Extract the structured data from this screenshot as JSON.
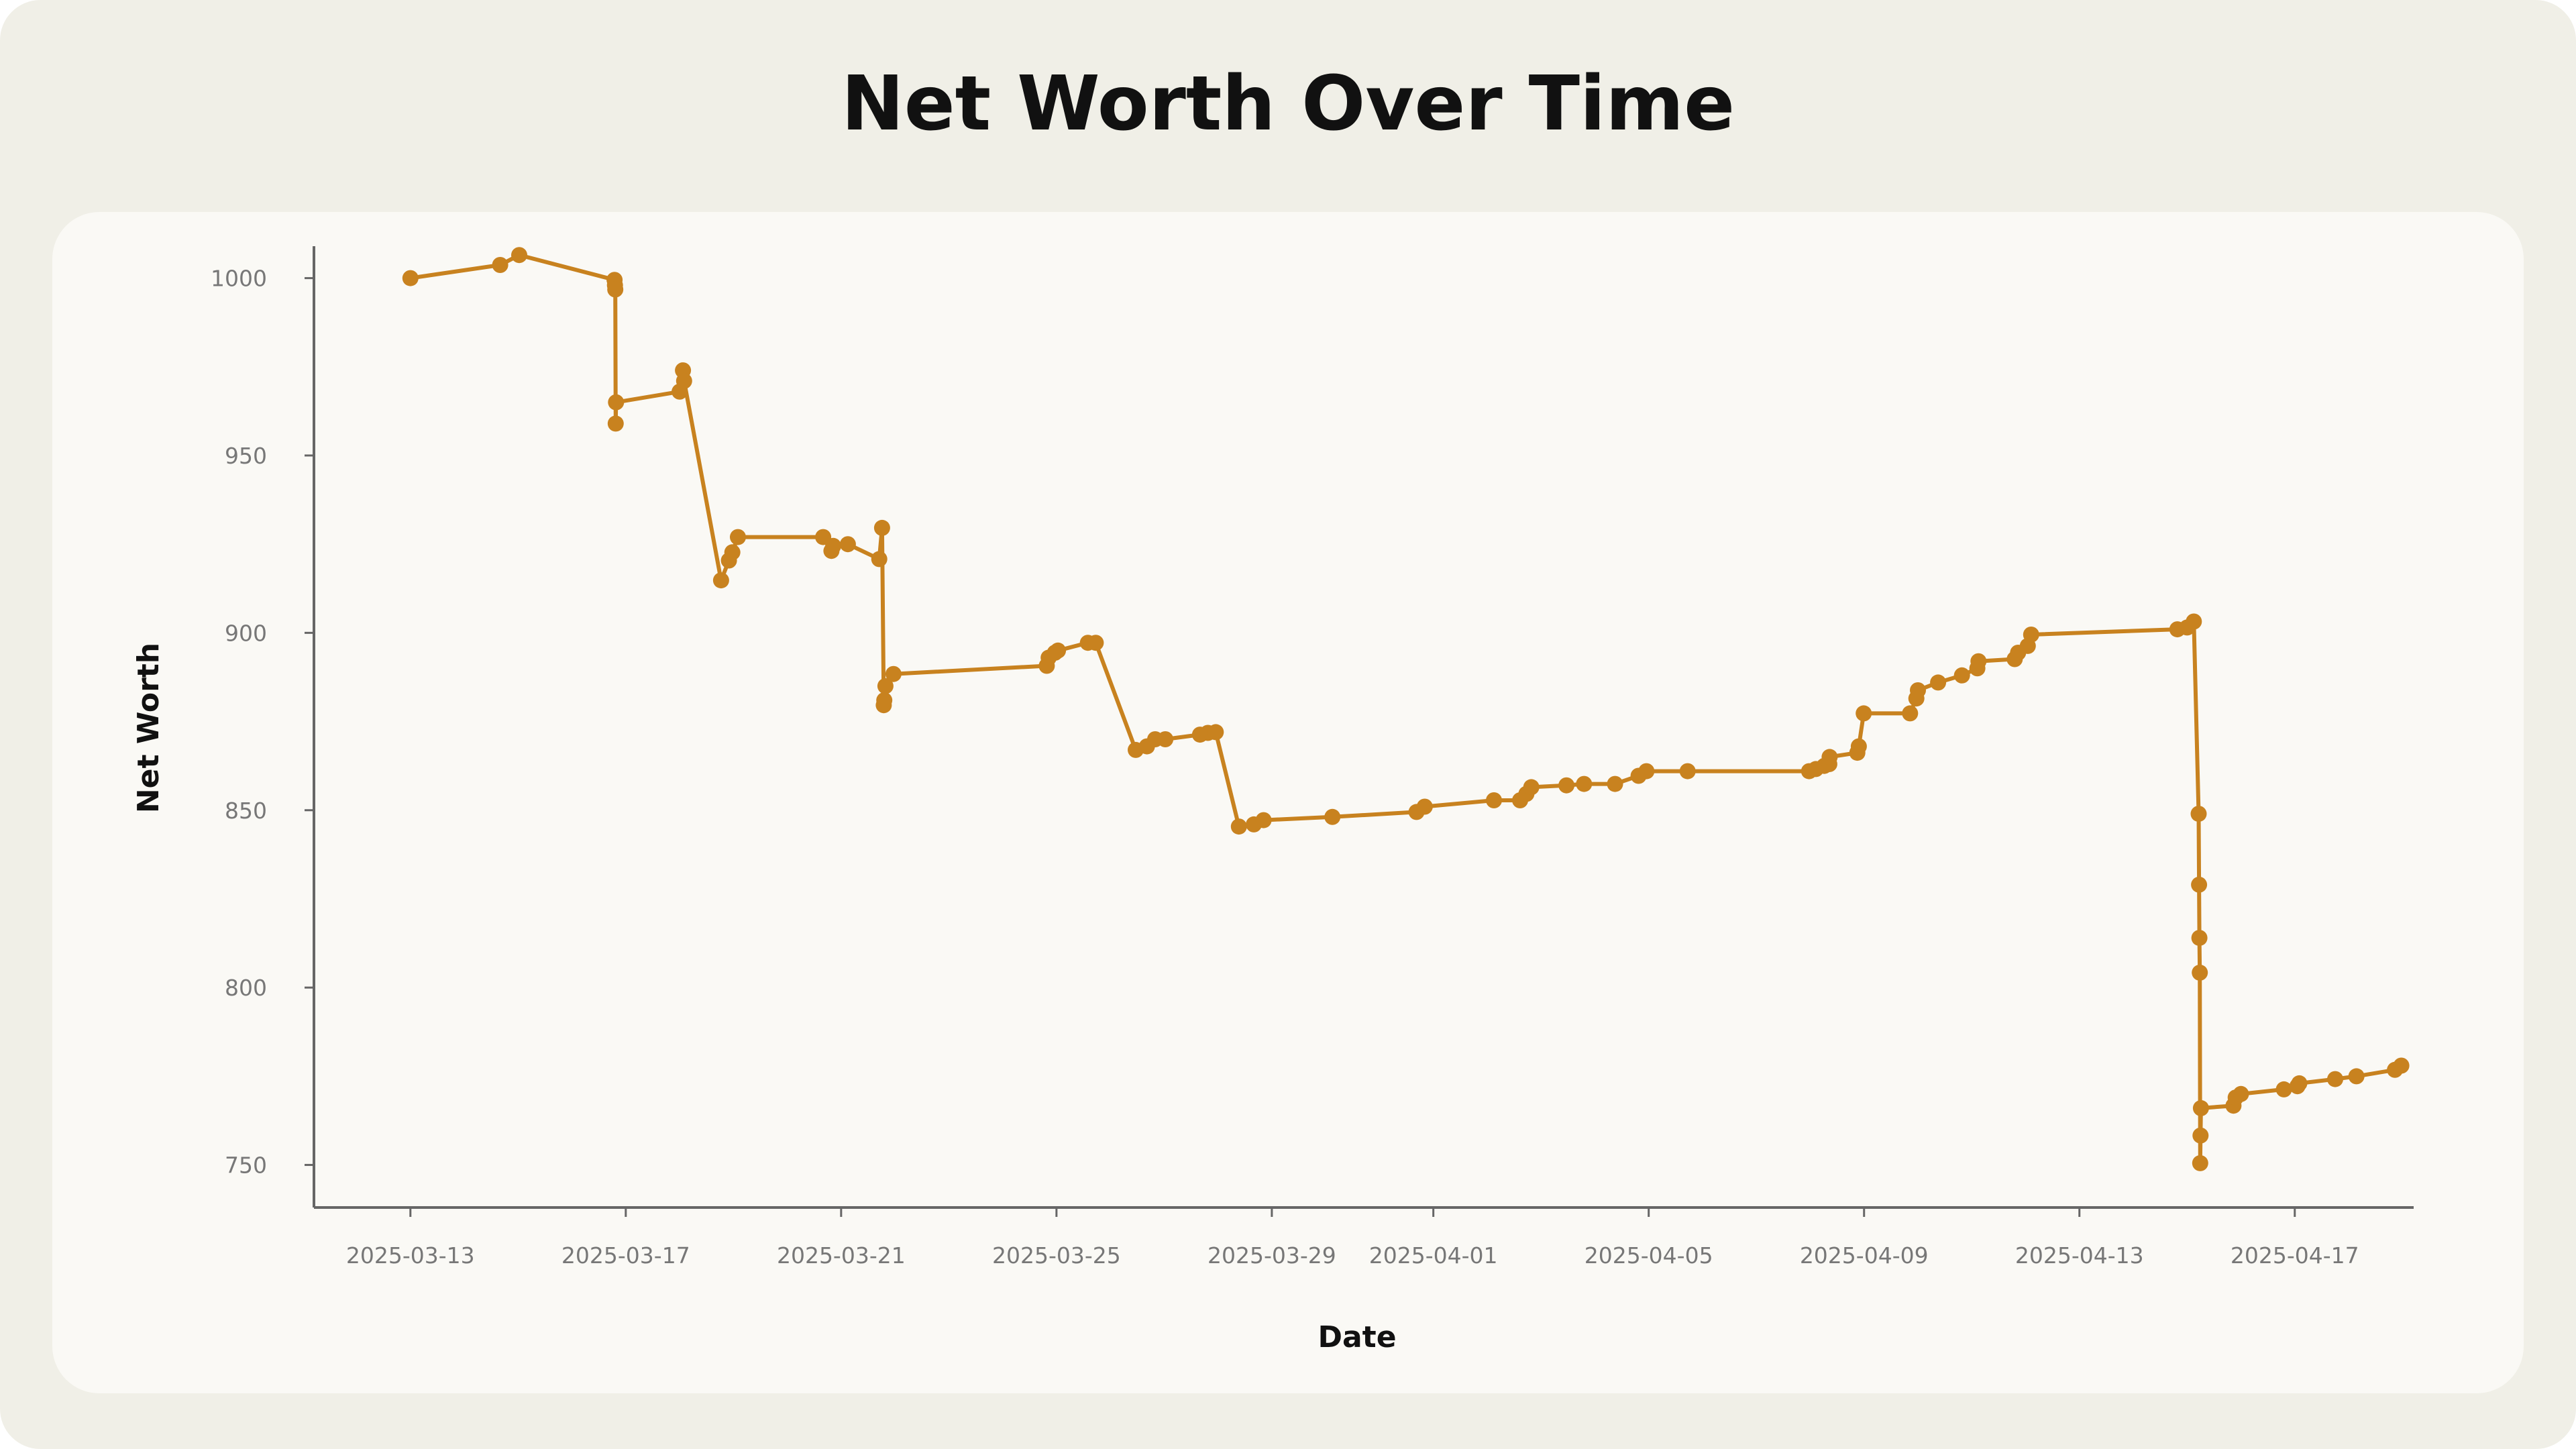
{
  "chart_data": {
    "type": "line",
    "title": "Net Worth Over Time",
    "xlabel": "Date",
    "ylabel": "Net Worth",
    "xlim": [
      "2025-03-11T05:00",
      "2025-04-19T05:00"
    ],
    "ylim": [
      738,
      1009
    ],
    "grid": false,
    "color": "#c8821f",
    "x_ticks": [
      "2025-03-13",
      "2025-03-17",
      "2025-03-21",
      "2025-03-25",
      "2025-03-29",
      "2025-04-01",
      "2025-04-05",
      "2025-04-09",
      "2025-04-13",
      "2025-04-17"
    ],
    "y_ticks": [
      750,
      800,
      850,
      900,
      950,
      1000
    ],
    "points": [
      [
        "2025-03-13T00:00",
        1000
      ],
      [
        "2025-03-14T16:00",
        1003.7
      ],
      [
        "2025-03-15T00:30",
        1006.5
      ],
      [
        "2025-03-16T19:00",
        999.5
      ],
      [
        "2025-03-16T19:10",
        998
      ],
      [
        "2025-03-16T19:20",
        996.8
      ],
      [
        "2025-03-16T19:30",
        959
      ],
      [
        "2025-03-16T19:40",
        965
      ],
      [
        "2025-03-18T00:00",
        968
      ],
      [
        "2025-03-18T01:30",
        974
      ],
      [
        "2025-03-18T02:00",
        971
      ],
      [
        "2025-03-18T18:30",
        914.8
      ],
      [
        "2025-03-18T22:00",
        920.4
      ],
      [
        "2025-03-18T23:30",
        922.7
      ],
      [
        "2025-03-19T02:00",
        927
      ],
      [
        "2025-03-20T16:00",
        927
      ],
      [
        "2025-03-20T19:40",
        923.1
      ],
      [
        "2025-03-20T20:30",
        924.5
      ],
      [
        "2025-03-21T03:00",
        925
      ],
      [
        "2025-03-21T17:00",
        920.8
      ],
      [
        "2025-03-21T18:15",
        929.6
      ],
      [
        "2025-03-21T19:00",
        879.6
      ],
      [
        "2025-03-21T19:15",
        881
      ],
      [
        "2025-03-21T19:45",
        885
      ],
      [
        "2025-03-21T23:20",
        888.4
      ],
      [
        "2025-03-24T19:40",
        890.7
      ],
      [
        "2025-03-24T20:30",
        893
      ],
      [
        "2025-03-24T23:20",
        894.4
      ],
      [
        "2025-03-25T00:40",
        895
      ],
      [
        "2025-03-25T14:00",
        897.2
      ],
      [
        "2025-03-25T17:30",
        897.2
      ],
      [
        "2025-03-26T11:20",
        867
      ],
      [
        "2025-03-26T16:20",
        868
      ],
      [
        "2025-03-26T20:00",
        870
      ],
      [
        "2025-03-27T00:30",
        870
      ],
      [
        "2025-03-27T16:00",
        871.3
      ],
      [
        "2025-03-27T19:30",
        871.8
      ],
      [
        "2025-03-27T23:00",
        872
      ],
      [
        "2025-03-28T09:20",
        845.4
      ],
      [
        "2025-03-28T16:00",
        846
      ],
      [
        "2025-03-28T20:20",
        847.2
      ],
      [
        "2025-03-30T03:00",
        848.1
      ],
      [
        "2025-03-31T16:30",
        849.5
      ],
      [
        "2025-03-31T20:10",
        851
      ],
      [
        "2025-04-02T03:00",
        852.8
      ],
      [
        "2025-04-02T14:40",
        852.8
      ],
      [
        "2025-04-02T17:30",
        854.6
      ],
      [
        "2025-04-02T19:40",
        856.5
      ],
      [
        "2025-04-03T11:20",
        857
      ],
      [
        "2025-04-03T19:10",
        857.4
      ],
      [
        "2025-04-04T09:00",
        857.4
      ],
      [
        "2025-04-04T19:30",
        859.7
      ],
      [
        "2025-04-04T23:00",
        861
      ],
      [
        "2025-04-05T17:20",
        861
      ],
      [
        "2025-04-07T23:30",
        861
      ],
      [
        "2025-04-08T02:30",
        861.6
      ],
      [
        "2025-04-08T06:15",
        862.5
      ],
      [
        "2025-04-08T08:30",
        863
      ],
      [
        "2025-04-08T08:40",
        865
      ],
      [
        "2025-04-08T21:00",
        866.2
      ],
      [
        "2025-04-08T21:40",
        868
      ],
      [
        "2025-04-08T23:50",
        877.3
      ],
      [
        "2025-04-09T20:30",
        877.3
      ],
      [
        "2025-04-09T23:20",
        881.5
      ],
      [
        "2025-04-10T00:00",
        883.8
      ],
      [
        "2025-04-10T09:00",
        886
      ],
      [
        "2025-04-10T19:40",
        888
      ],
      [
        "2025-04-11T02:30",
        890
      ],
      [
        "2025-04-11T03:00",
        892
      ],
      [
        "2025-04-11T19:10",
        892.6
      ],
      [
        "2025-04-11T20:40",
        894.4
      ],
      [
        "2025-04-12T01:00",
        896.3
      ],
      [
        "2025-04-12T02:30",
        899.5
      ],
      [
        "2025-04-14T19:40",
        901
      ],
      [
        "2025-04-15T00:00",
        901.5
      ],
      [
        "2025-04-15T03:00",
        903.2
      ],
      [
        "2025-04-15T05:10",
        849
      ],
      [
        "2025-04-15T05:20",
        829
      ],
      [
        "2025-04-15T05:30",
        814
      ],
      [
        "2025-04-15T05:40",
        804.2
      ],
      [
        "2025-04-15T05:50",
        750.5
      ],
      [
        "2025-04-15T06:00",
        758.3
      ],
      [
        "2025-04-15T06:10",
        766
      ],
      [
        "2025-04-15T20:40",
        766.7
      ],
      [
        "2025-04-15T21:40",
        769
      ],
      [
        "2025-04-16T00:00",
        770
      ],
      [
        "2025-04-16T19:10",
        771.3
      ],
      [
        "2025-04-17T01:10",
        772.2
      ],
      [
        "2025-04-17T02:00",
        773
      ],
      [
        "2025-04-17T18:00",
        774.2
      ],
      [
        "2025-04-18T03:30",
        775
      ],
      [
        "2025-04-18T20:40",
        776.8
      ],
      [
        "2025-04-18T23:30",
        778
      ]
    ]
  }
}
